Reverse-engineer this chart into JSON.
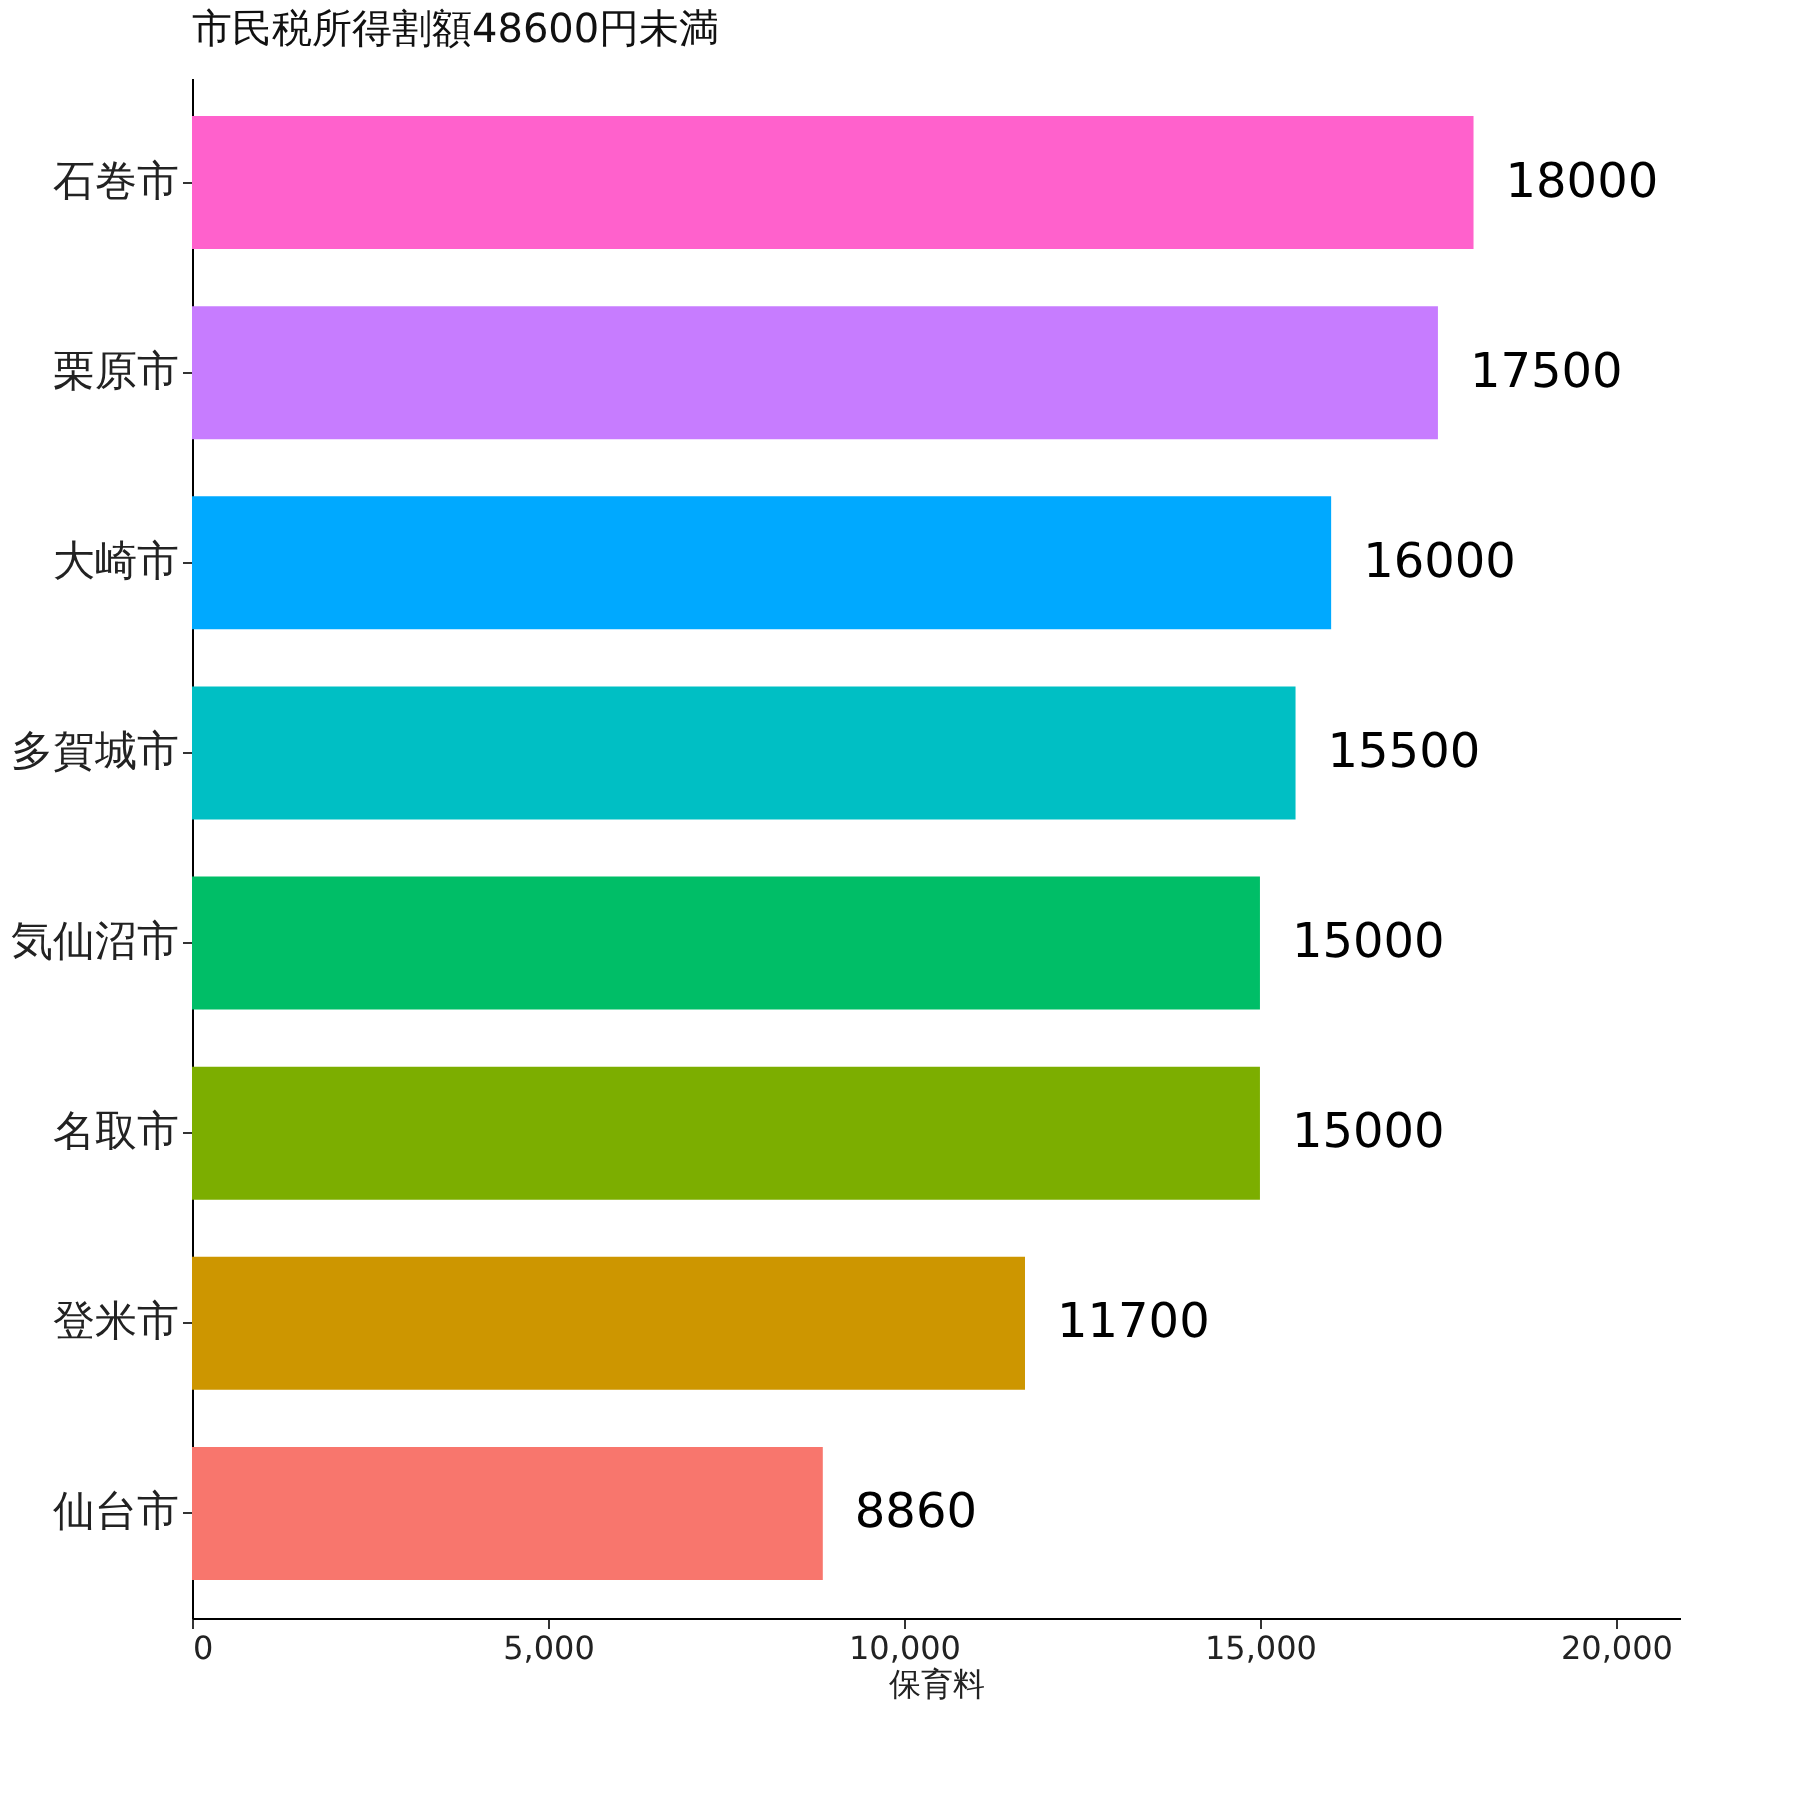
{
  "chart_data": {
    "type": "bar",
    "orientation": "horizontal",
    "title": "市民税所得割額48600円未満",
    "xlabel": "保育料",
    "categories": [
      "石巻市",
      "栗原市",
      "大崎市",
      "多賀城市",
      "気仙沼市",
      "名取市",
      "登米市",
      "仙台市"
    ],
    "values": [
      18000,
      17500,
      16000,
      15500,
      15000,
      15000,
      11700,
      8860
    ],
    "colors": [
      "#ff61cc",
      "#c77cff",
      "#00a9ff",
      "#00bfc4",
      "#00be67",
      "#7cae00",
      "#cd9600",
      "#f8766d"
    ],
    "xlim": [
      0,
      20900
    ],
    "xticks": [
      0,
      {
        "value": 5000,
        "label": "5,000"
      },
      {
        "value": 10000,
        "label": "10,000"
      },
      {
        "value": 15000,
        "label": "15,000"
      },
      {
        "value": 20000,
        "label": "20,000"
      }
    ],
    "data_labels": true,
    "grid": false
  }
}
